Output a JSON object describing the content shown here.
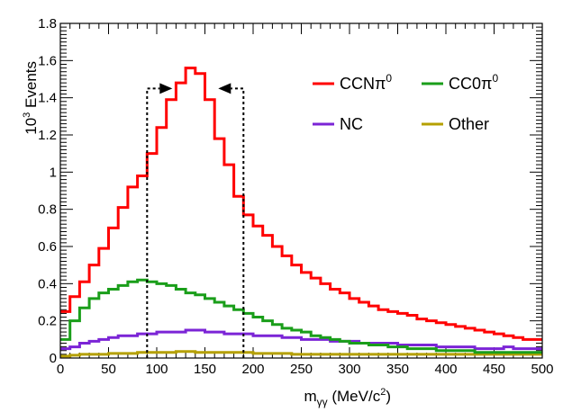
{
  "chart_data": {
    "type": "step-histogram",
    "title": "",
    "xlabel": "m_γγ (MeV/c²)",
    "ylabel": "10³ Events",
    "xlabel_parts": {
      "main": "m",
      "sub": "γγ",
      "unit_open": " (MeV/c",
      "unit_sup": "2",
      "unit_close": ")"
    },
    "ylabel_parts": {
      "base": "10",
      "sup": "3",
      "rest": " Events"
    },
    "xlim": [
      0,
      500
    ],
    "ylim": [
      0,
      1.8
    ],
    "bin_width": 10,
    "x_ticks": [
      0,
      50,
      100,
      150,
      200,
      250,
      300,
      350,
      400,
      450,
      500
    ],
    "x_tick_labels": [
      "0",
      "50",
      "100",
      "150",
      "200",
      "250",
      "300",
      "350",
      "400",
      "450",
      "500"
    ],
    "y_ticks": [
      0,
      0.2,
      0.4,
      0.6,
      0.8,
      1.0,
      1.2,
      1.4,
      1.6,
      1.8
    ],
    "y_tick_labels": [
      "0",
      "0.2",
      "0.4",
      "0.6",
      "0.8",
      "1",
      "1.2",
      "1.4",
      "1.6",
      "1.8"
    ],
    "selection_window": {
      "low": 90,
      "high": 190,
      "height": 1.45
    },
    "series": [
      {
        "name": "CCNπ⁰",
        "label_main": "CCNπ",
        "label_sup": "0",
        "color": "#ff0000",
        "values": [
          0.25,
          0.33,
          0.41,
          0.5,
          0.59,
          0.7,
          0.81,
          0.92,
          0.98,
          1.1,
          1.24,
          1.39,
          1.48,
          1.56,
          1.53,
          1.39,
          1.18,
          1.04,
          0.87,
          0.77,
          0.71,
          0.66,
          0.6,
          0.55,
          0.5,
          0.46,
          0.43,
          0.4,
          0.37,
          0.35,
          0.32,
          0.3,
          0.28,
          0.26,
          0.25,
          0.24,
          0.23,
          0.21,
          0.2,
          0.19,
          0.18,
          0.17,
          0.16,
          0.15,
          0.14,
          0.13,
          0.12,
          0.11,
          0.1,
          0.1
        ]
      },
      {
        "name": "CC0π⁰",
        "label_main": "CC0π",
        "label_sup": "0",
        "color": "#1a9e1a",
        "values": [
          0.1,
          0.2,
          0.27,
          0.32,
          0.35,
          0.37,
          0.39,
          0.41,
          0.42,
          0.41,
          0.4,
          0.39,
          0.37,
          0.35,
          0.34,
          0.32,
          0.3,
          0.28,
          0.26,
          0.24,
          0.22,
          0.2,
          0.18,
          0.16,
          0.15,
          0.14,
          0.12,
          0.11,
          0.1,
          0.09,
          0.08,
          0.08,
          0.07,
          0.07,
          0.06,
          0.06,
          0.05,
          0.05,
          0.05,
          0.04,
          0.04,
          0.04,
          0.04,
          0.03,
          0.03,
          0.03,
          0.03,
          0.03,
          0.03,
          0.03
        ]
      },
      {
        "name": "NC",
        "label_main": "NC",
        "label_sup": "",
        "color": "#7b24d6",
        "values": [
          0.05,
          0.06,
          0.08,
          0.09,
          0.1,
          0.11,
          0.12,
          0.12,
          0.13,
          0.13,
          0.14,
          0.14,
          0.14,
          0.15,
          0.15,
          0.14,
          0.14,
          0.13,
          0.13,
          0.13,
          0.12,
          0.12,
          0.12,
          0.11,
          0.11,
          0.1,
          0.1,
          0.1,
          0.09,
          0.09,
          0.09,
          0.08,
          0.08,
          0.08,
          0.08,
          0.07,
          0.07,
          0.07,
          0.07,
          0.06,
          0.06,
          0.06,
          0.06,
          0.05,
          0.05,
          0.05,
          0.06,
          0.05,
          0.05,
          0.05
        ]
      },
      {
        "name": "Other",
        "label_main": "Other",
        "label_sup": "",
        "color": "#b5a000",
        "values": [
          0.01,
          0.015,
          0.02,
          0.02,
          0.02,
          0.025,
          0.025,
          0.025,
          0.03,
          0.03,
          0.03,
          0.03,
          0.035,
          0.035,
          0.03,
          0.03,
          0.03,
          0.03,
          0.03,
          0.03,
          0.025,
          0.025,
          0.025,
          0.025,
          0.02,
          0.02,
          0.02,
          0.02,
          0.02,
          0.02,
          0.02,
          0.02,
          0.02,
          0.02,
          0.02,
          0.02,
          0.02,
          0.02,
          0.02,
          0.02,
          0.02,
          0.02,
          0.02,
          0.02,
          0.02,
          0.02,
          0.02,
          0.02,
          0.02,
          0.02
        ]
      }
    ],
    "legend_position": "top-right"
  }
}
